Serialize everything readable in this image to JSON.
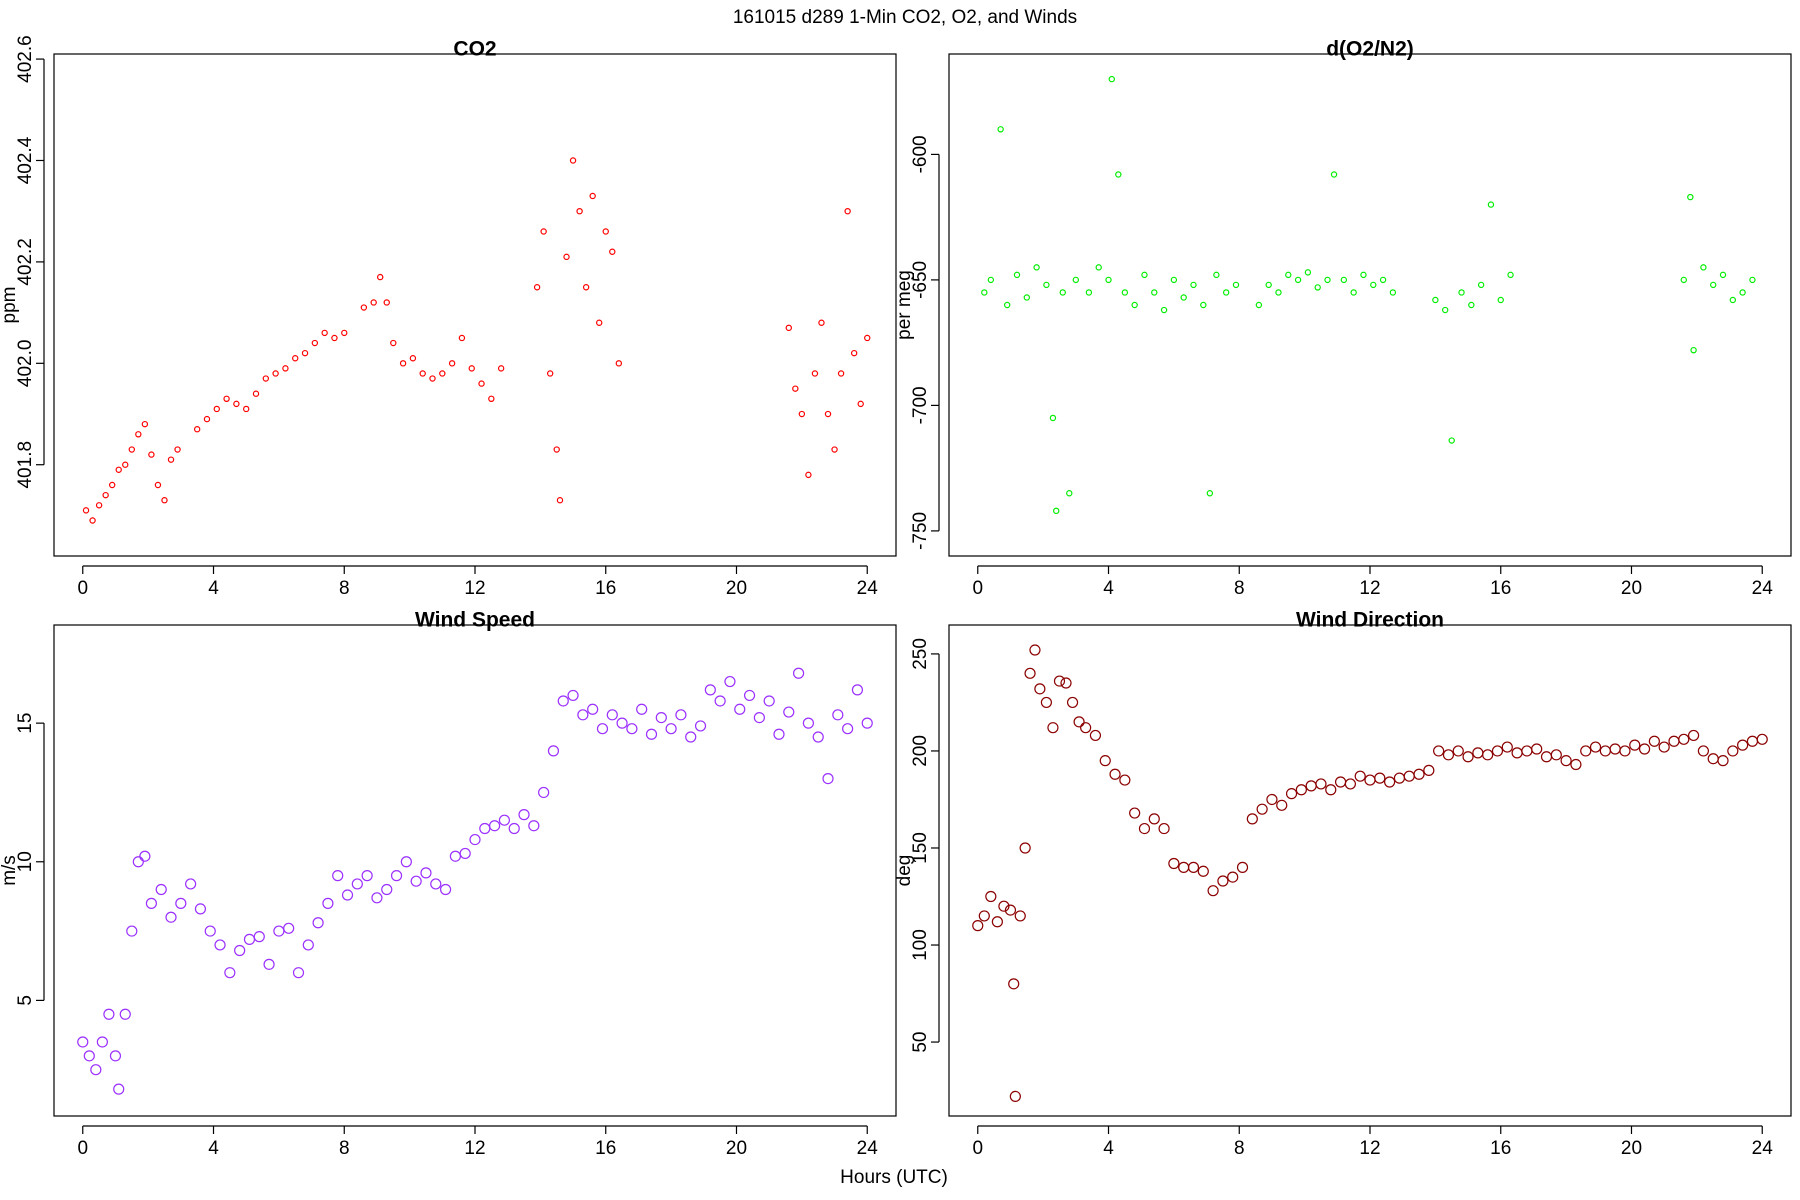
{
  "title": "161015   d289   1-Min CO2, O2, and Winds",
  "x_label": "Hours (UTC)",
  "chart_data": [
    {
      "type": "scatter",
      "title": "CO2",
      "y_label": "ppm",
      "color": "#ff0000",
      "xlim": [
        -0.88,
        24.88
      ],
      "ylim": [
        401.62,
        402.61
      ],
      "xticks": [
        0,
        4,
        8,
        12,
        16,
        20,
        24
      ],
      "yticks": [
        401.8,
        {
          "value": 402,
          "label": "402.0"
        },
        402.2,
        402.4,
        402.6
      ],
      "x": [
        0.1,
        0.3,
        0.5,
        0.7,
        0.9,
        1.1,
        1.3,
        1.5,
        1.7,
        1.9,
        2.1,
        2.3,
        2.5,
        2.7,
        2.9,
        3.5,
        3.8,
        4.1,
        4.4,
        4.7,
        5.0,
        5.3,
        5.6,
        5.9,
        6.2,
        6.5,
        6.8,
        7.1,
        7.4,
        7.7,
        8.0,
        8.6,
        8.9,
        9.1,
        9.3,
        9.5,
        9.8,
        10.1,
        10.4,
        10.7,
        11.0,
        11.3,
        11.6,
        11.9,
        12.2,
        12.5,
        12.8,
        13.9,
        14.1,
        14.3,
        14.5,
        14.6,
        14.8,
        15.0,
        15.2,
        15.4,
        15.6,
        15.8,
        16.0,
        16.2,
        16.4,
        21.6,
        21.8,
        22.0,
        22.2,
        22.4,
        22.6,
        22.8,
        23.0,
        23.2,
        23.4,
        23.6,
        23.8,
        24.0
      ],
      "values": [
        401.71,
        401.69,
        401.72,
        401.74,
        401.76,
        401.79,
        401.8,
        401.83,
        401.86,
        401.88,
        401.82,
        401.76,
        401.73,
        401.81,
        401.83,
        401.87,
        401.89,
        401.91,
        401.93,
        401.92,
        401.91,
        401.94,
        401.97,
        401.98,
        401.99,
        402.01,
        402.02,
        402.04,
        402.06,
        402.05,
        402.06,
        402.11,
        402.12,
        402.17,
        402.12,
        402.04,
        402.0,
        402.01,
        401.98,
        401.97,
        401.98,
        402.0,
        402.05,
        401.99,
        401.96,
        401.93,
        401.99,
        402.15,
        402.26,
        401.98,
        401.83,
        401.73,
        402.21,
        402.4,
        402.3,
        402.15,
        402.33,
        402.08,
        402.26,
        402.22,
        402.0,
        402.07,
        401.95,
        401.9,
        401.78,
        401.98,
        402.08,
        401.9,
        401.83,
        401.98,
        402.3,
        402.02,
        401.92,
        402.05
      ]
    },
    {
      "type": "scatter",
      "title": "d(O2/N2)",
      "y_label": "per meg",
      "color": "#00ee00",
      "xlim": [
        -0.88,
        24.88
      ],
      "ylim": [
        -760,
        -560
      ],
      "xticks": [
        0,
        4,
        8,
        12,
        16,
        20,
        24
      ],
      "yticks": [
        -750,
        -700,
        -650,
        -600
      ],
      "x": [
        0.2,
        0.4,
        0.7,
        0.9,
        1.2,
        1.5,
        1.8,
        2.1,
        2.3,
        2.4,
        2.6,
        2.8,
        3.0,
        3.4,
        3.7,
        4.0,
        4.1,
        4.3,
        4.5,
        4.8,
        5.1,
        5.4,
        5.7,
        6.0,
        6.3,
        6.6,
        6.9,
        7.1,
        7.3,
        7.6,
        7.9,
        8.6,
        8.9,
        9.2,
        9.5,
        9.8,
        10.1,
        10.4,
        10.7,
        10.9,
        11.2,
        11.5,
        11.8,
        12.1,
        12.4,
        12.7,
        14.0,
        14.3,
        14.5,
        14.8,
        15.1,
        15.4,
        15.7,
        16.0,
        16.3,
        21.6,
        21.8,
        21.9,
        22.2,
        22.5,
        22.8,
        23.1,
        23.4,
        23.7
      ],
      "values": [
        -655,
        -650,
        -590,
        -660,
        -648,
        -657,
        -645,
        -652,
        -705,
        -742,
        -655,
        -735,
        -650,
        -655,
        -645,
        -650,
        -570,
        -608,
        -655,
        -660,
        -648,
        -655,
        -662,
        -650,
        -657,
        -652,
        -660,
        -735,
        -648,
        -655,
        -652,
        -660,
        -652,
        -655,
        -648,
        -650,
        -647,
        -653,
        -650,
        -608,
        -650,
        -655,
        -648,
        -652,
        -650,
        -655,
        -658,
        -662,
        -714,
        -655,
        -660,
        -652,
        -620,
        -658,
        -648,
        -650,
        -617,
        -678,
        -645,
        -652,
        -648,
        -658,
        -655,
        -650
      ]
    },
    {
      "type": "scatter",
      "title": "Wind Speed",
      "y_label": "m/s",
      "color": "#9b30ff",
      "xlim": [
        -0.88,
        24.88
      ],
      "ylim": [
        0.83,
        18.54
      ],
      "xticks": [
        0,
        4,
        8,
        12,
        16,
        20,
        24
      ],
      "yticks": [
        5,
        10,
        15
      ],
      "x": [
        0.0,
        0.2,
        0.4,
        0.6,
        0.8,
        1.0,
        1.1,
        1.3,
        1.5,
        1.7,
        1.9,
        2.1,
        2.4,
        2.7,
        3.0,
        3.3,
        3.6,
        3.9,
        4.2,
        4.5,
        4.8,
        5.1,
        5.4,
        5.7,
        6.0,
        6.3,
        6.6,
        6.9,
        7.2,
        7.5,
        7.8,
        8.1,
        8.4,
        8.7,
        9.0,
        9.3,
        9.6,
        9.9,
        10.2,
        10.5,
        10.8,
        11.1,
        11.4,
        11.7,
        12.0,
        12.3,
        12.6,
        12.9,
        13.2,
        13.5,
        13.8,
        14.1,
        14.4,
        14.7,
        15.0,
        15.3,
        15.6,
        15.9,
        16.2,
        16.5,
        16.8,
        17.1,
        17.4,
        17.7,
        18.0,
        18.3,
        18.6,
        18.9,
        19.2,
        19.5,
        19.8,
        20.1,
        20.4,
        20.7,
        21.0,
        21.3,
        21.6,
        21.9,
        22.2,
        22.5,
        22.8,
        23.1,
        23.4,
        23.7,
        24.0
      ],
      "values": [
        3.5,
        3.0,
        2.5,
        3.5,
        4.5,
        3.0,
        1.8,
        4.5,
        7.5,
        10.0,
        10.2,
        8.5,
        9.0,
        8.0,
        8.5,
        9.2,
        8.3,
        7.5,
        7.0,
        6.0,
        6.8,
        7.2,
        7.3,
        6.3,
        7.5,
        7.6,
        6.0,
        7.0,
        7.8,
        8.5,
        9.5,
        8.8,
        9.2,
        9.5,
        8.7,
        9.0,
        9.5,
        10.0,
        9.3,
        9.6,
        9.2,
        9.0,
        10.2,
        10.3,
        10.8,
        11.2,
        11.3,
        11.5,
        11.2,
        11.7,
        11.3,
        12.5,
        14.0,
        15.8,
        16.0,
        15.3,
        15.5,
        14.8,
        15.3,
        15.0,
        14.8,
        15.5,
        14.6,
        15.2,
        14.8,
        15.3,
        14.5,
        14.9,
        16.2,
        15.8,
        16.5,
        15.5,
        16.0,
        15.2,
        15.8,
        14.6,
        15.4,
        16.8,
        15.0,
        14.5,
        13.0,
        15.3,
        14.8,
        16.2,
        15.0
      ]
    },
    {
      "type": "scatter",
      "title": "Wind Direction",
      "y_label": "deg",
      "color": "#8b0000",
      "xlim": [
        -0.88,
        24.88
      ],
      "ylim": [
        11.9,
        264.9
      ],
      "xticks": [
        0,
        4,
        8,
        12,
        16,
        20,
        24
      ],
      "yticks": [
        50,
        100,
        150,
        200,
        250
      ],
      "x": [
        0.0,
        0.2,
        0.4,
        0.6,
        0.8,
        1.0,
        1.1,
        1.15,
        1.3,
        1.45,
        1.6,
        1.75,
        1.9,
        2.1,
        2.3,
        2.5,
        2.7,
        2.9,
        3.1,
        3.3,
        3.6,
        3.9,
        4.2,
        4.5,
        4.8,
        5.1,
        5.4,
        5.7,
        6.0,
        6.3,
        6.6,
        6.9,
        7.2,
        7.5,
        7.8,
        8.1,
        8.4,
        8.7,
        9.0,
        9.3,
        9.6,
        9.9,
        10.2,
        10.5,
        10.8,
        11.1,
        11.4,
        11.7,
        12.0,
        12.3,
        12.6,
        12.9,
        13.2,
        13.5,
        13.8,
        14.1,
        14.4,
        14.7,
        15.0,
        15.3,
        15.6,
        15.9,
        16.2,
        16.5,
        16.8,
        17.1,
        17.4,
        17.7,
        18.0,
        18.3,
        18.6,
        18.9,
        19.2,
        19.5,
        19.8,
        20.1,
        20.4,
        20.7,
        21.0,
        21.3,
        21.6,
        21.9,
        22.2,
        22.5,
        22.8,
        23.1,
        23.4,
        23.7,
        24.0
      ],
      "values": [
        110,
        115,
        125,
        112,
        120,
        118,
        80,
        22,
        115,
        150,
        240,
        252,
        232,
        225,
        212,
        236,
        235,
        225,
        215,
        212,
        208,
        195,
        188,
        185,
        168,
        160,
        165,
        160,
        142,
        140,
        140,
        138,
        128,
        133,
        135,
        140,
        165,
        170,
        175,
        172,
        178,
        180,
        182,
        183,
        180,
        184,
        183,
        187,
        185,
        186,
        184,
        186,
        187,
        188,
        190,
        200,
        198,
        200,
        197,
        199,
        198,
        200,
        202,
        199,
        200,
        201,
        197,
        198,
        195,
        193,
        200,
        202,
        200,
        201,
        200,
        203,
        201,
        205,
        202,
        205,
        206,
        208,
        200,
        196,
        195,
        200,
        203,
        205,
        206
      ]
    }
  ]
}
